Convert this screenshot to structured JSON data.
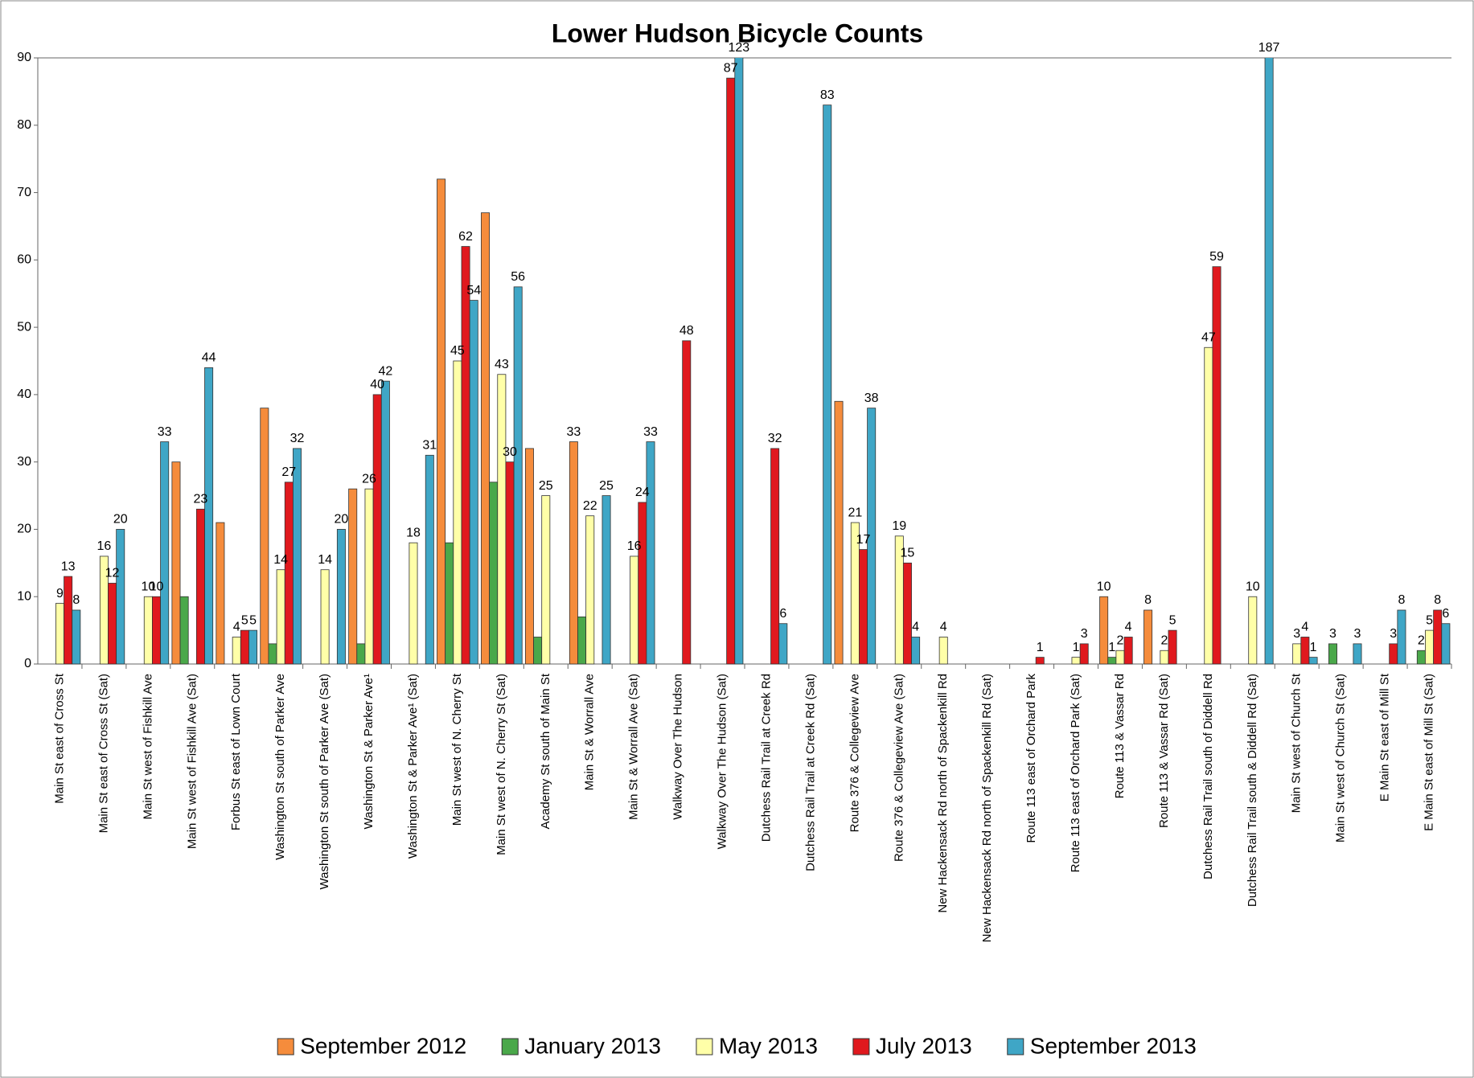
{
  "chart_data": {
    "type": "bar",
    "title": "Lower Hudson Bicycle Counts",
    "categories": [
      "Main St east of Cross St",
      "Main St east of Cross St (Sat)",
      "Main St west of Fishkill Ave",
      "Main St west of Fishkill Ave (Sat)",
      "Forbus St east of Lown Court",
      "Washington St  south of Parker Ave",
      "Washington St  south of Parker Ave (Sat)",
      "Washington St & Parker Ave¹",
      "Washington St & Parker Ave¹ (Sat)",
      "Main St west of N. Cherry St",
      "Main St west of N. Cherry St (Sat)",
      "Academy St south of Main St",
      "Main St & Worrall Ave",
      "Main St & Worrall Ave (Sat)",
      "Walkway Over The Hudson",
      "Walkway Over The Hudson (Sat)",
      "Dutchess Rail Trail at Creek Rd",
      "Dutchess Rail Trail at Creek Rd (Sat)",
      "Route 376 & Collegeview Ave",
      "Route 376 & Collegeview Ave (Sat)",
      "New Hackensack Rd north of Spackenkill Rd",
      "New Hackensack Rd north of Spackenkill Rd (Sat)",
      "Route 113 east of Orchard Park",
      "Route 113 east of Orchard Park (Sat)",
      "Route 113 & Vassar Rd",
      "Route 113 & Vassar  Rd (Sat)",
      "Dutchess Rail Trail south of Diddell Rd",
      "Dutchess Rail Trail south & Diddell Rd (Sat)",
      "Main St west of Church St",
      "Main St west of Church St (Sat)",
      "E Main St east of Mill St",
      "E Main St east of Mill St (Sat)"
    ],
    "series": [
      {
        "name": "September 2012",
        "color": "#f58c3c",
        "values": [
          null,
          null,
          null,
          30,
          21,
          38,
          null,
          26,
          null,
          72,
          67,
          32,
          33,
          null,
          null,
          null,
          null,
          null,
          39,
          null,
          null,
          null,
          null,
          null,
          10,
          8,
          null,
          null,
          null,
          null,
          null,
          null
        ],
        "value_labels": [
          null,
          null,
          null,
          null,
          null,
          null,
          null,
          null,
          null,
          null,
          null,
          null,
          "33",
          null,
          null,
          null,
          null,
          null,
          null,
          null,
          null,
          null,
          null,
          null,
          "10",
          "8",
          null,
          null,
          null,
          null,
          null,
          null
        ]
      },
      {
        "name": "January 2013",
        "color": "#4aa84a",
        "values": [
          null,
          null,
          null,
          10,
          null,
          3,
          null,
          3,
          null,
          18,
          27,
          4,
          7,
          null,
          null,
          null,
          null,
          null,
          null,
          null,
          null,
          null,
          null,
          null,
          1,
          null,
          null,
          null,
          null,
          3,
          null,
          2
        ],
        "value_labels": [
          null,
          null,
          null,
          null,
          null,
          null,
          null,
          null,
          null,
          null,
          null,
          null,
          null,
          null,
          null,
          null,
          null,
          null,
          null,
          null,
          null,
          null,
          null,
          null,
          "1",
          null,
          null,
          null,
          null,
          "3",
          null,
          "2"
        ]
      },
      {
        "name": "May 2013",
        "color": "#ffffa8",
        "values": [
          9,
          16,
          10,
          null,
          4,
          14,
          14,
          26,
          18,
          45,
          43,
          25,
          22,
          16,
          null,
          null,
          null,
          null,
          21,
          19,
          4,
          null,
          null,
          1,
          2,
          2,
          47,
          10,
          3,
          null,
          null,
          5
        ],
        "value_labels": [
          "9",
          "16",
          "10",
          null,
          "4",
          "14",
          "14",
          "26",
          "18",
          "45",
          "43",
          "25",
          "22",
          "16",
          null,
          null,
          null,
          null,
          "21",
          "19",
          "4",
          null,
          null,
          "1",
          "2",
          "2",
          "47",
          "10",
          "3",
          null,
          null,
          "5"
        ]
      },
      {
        "name": "July 2013",
        "color": "#e0191e",
        "values": [
          13,
          12,
          10,
          23,
          5,
          27,
          null,
          40,
          null,
          62,
          30,
          null,
          null,
          24,
          48,
          87,
          32,
          null,
          17,
          15,
          null,
          null,
          1,
          3,
          4,
          5,
          59,
          null,
          4,
          null,
          3,
          8
        ],
        "value_labels": [
          "13",
          "12",
          "10",
          "23",
          "5",
          "27",
          null,
          "40",
          null,
          "62",
          "30",
          null,
          null,
          "24",
          "48",
          "87",
          "32",
          null,
          "17",
          "15",
          null,
          null,
          "1",
          "3",
          "4",
          "5",
          "59",
          null,
          "4",
          null,
          "3",
          "8"
        ]
      },
      {
        "name": "September 2013",
        "color": "#3fa6c6",
        "values": [
          8,
          20,
          33,
          44,
          5,
          32,
          20,
          42,
          31,
          54,
          56,
          null,
          25,
          33,
          null,
          123,
          6,
          83,
          38,
          4,
          null,
          null,
          null,
          null,
          null,
          null,
          null,
          187,
          1,
          3,
          8,
          6
        ],
        "value_labels": [
          "8",
          "20",
          "33",
          "44",
          "5",
          "32",
          "20",
          "42",
          "31",
          "54",
          "56",
          null,
          "25",
          "33",
          null,
          "123",
          "6",
          "83",
          "38",
          "4",
          null,
          null,
          null,
          null,
          null,
          null,
          null,
          "187",
          "1",
          "3",
          "8",
          "6"
        ]
      }
    ],
    "ylim": [
      0,
      90
    ],
    "yticks": [
      0,
      10,
      20,
      30,
      40,
      50,
      60,
      70,
      80,
      90
    ],
    "grid": false,
    "legend": "bottom"
  }
}
